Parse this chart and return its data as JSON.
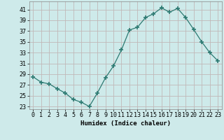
{
  "x": [
    0,
    1,
    2,
    3,
    4,
    5,
    6,
    7,
    8,
    9,
    10,
    11,
    12,
    13,
    14,
    15,
    16,
    17,
    18,
    19,
    20,
    21,
    22,
    23
  ],
  "y": [
    28.5,
    27.5,
    27.2,
    26.3,
    25.5,
    24.3,
    23.8,
    23.0,
    25.5,
    28.3,
    30.5,
    33.5,
    37.2,
    37.7,
    39.5,
    40.2,
    41.3,
    40.5,
    41.2,
    39.5,
    37.3,
    35.0,
    33.0,
    31.5
  ],
  "line_color": "#2d7a72",
  "marker_color": "#2d7a72",
  "bg_color": "#ceeaea",
  "grid_color": "#c0b8b8",
  "title": "",
  "xlabel": "Humidex (Indice chaleur)",
  "ylabel": "",
  "ylim": [
    22.5,
    42.5
  ],
  "xlim": [
    -0.5,
    23.5
  ],
  "yticks": [
    23,
    25,
    27,
    29,
    31,
    33,
    35,
    37,
    39,
    41
  ],
  "xtick_labels": [
    "0",
    "1",
    "2",
    "3",
    "4",
    "5",
    "6",
    "7",
    "8",
    "9",
    "10",
    "11",
    "12",
    "13",
    "14",
    "15",
    "16",
    "17",
    "18",
    "19",
    "20",
    "21",
    "22",
    "23"
  ],
  "xlabel_fontsize": 6.5,
  "tick_fontsize": 6.0
}
